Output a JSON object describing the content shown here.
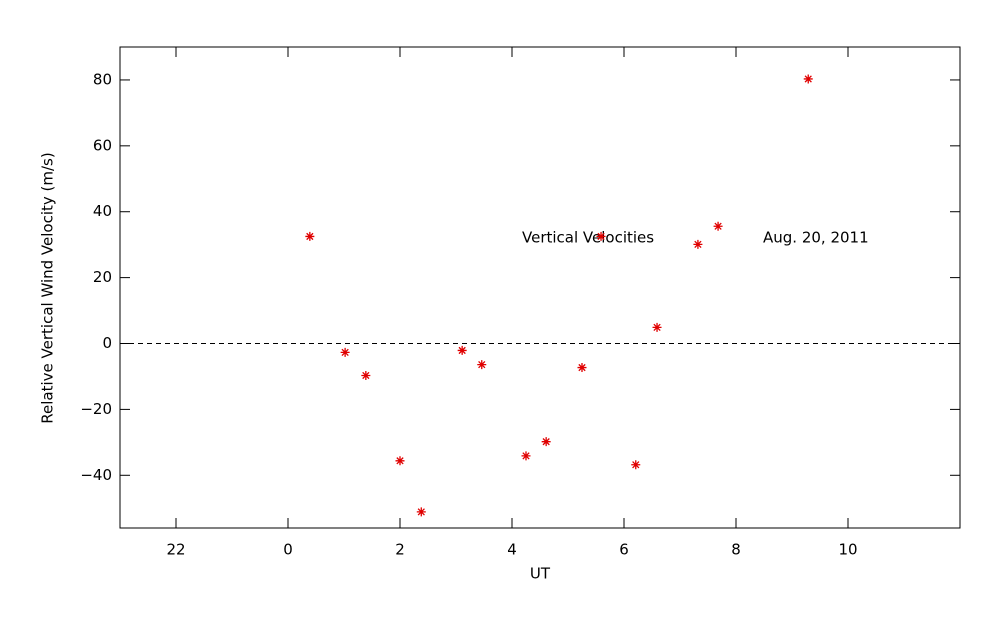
{
  "chart_data": {
    "type": "scatter",
    "x_label": "UT",
    "y_label": "Relative Vertical Wind Velocity (m/s)",
    "annotations": [
      "Vertical Velocities",
      "Aug. 20, 2011"
    ],
    "color": "#e00000",
    "marker": "asterisk",
    "zero_line": true,
    "x": [
      0.39,
      1.02,
      1.39,
      2.0,
      2.38,
      3.11,
      3.46,
      4.25,
      4.61,
      5.25,
      5.59,
      6.21,
      6.59,
      7.32,
      7.68,
      9.29
    ],
    "values": [
      32.5,
      -2.7,
      -9.7,
      -35.6,
      -51.1,
      -2.1,
      -6.4,
      -34.1,
      -29.8,
      -7.3,
      32.5,
      -36.8,
      4.9,
      30.1,
      35.6,
      80.3
    ],
    "xlim": [
      -3,
      12
    ],
    "xticks": [
      {
        "value": -2,
        "label": "22"
      },
      0,
      2,
      4,
      6,
      8,
      10
    ],
    "ylim": [
      -56,
      90
    ],
    "yticks": [
      {
        "value": -40,
        "label": "−40"
      },
      {
        "value": -20,
        "label": "−20"
      },
      0,
      20,
      40,
      60,
      80
    ]
  }
}
